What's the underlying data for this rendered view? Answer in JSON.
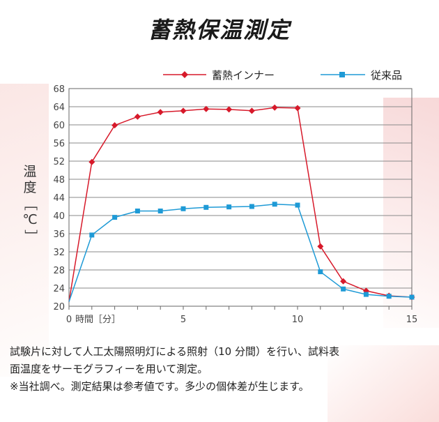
{
  "chart_data": {
    "type": "line",
    "title": "蓄熱保温測定",
    "ylabel": "温度［℃］",
    "xlabel": "時間［分］",
    "xlim": [
      0,
      15
    ],
    "ylim": [
      20,
      68
    ],
    "x_ticks": [
      0,
      5,
      10,
      15
    ],
    "y_ticks": [
      20,
      24,
      28,
      32,
      36,
      40,
      44,
      48,
      52,
      56,
      60,
      64,
      68
    ],
    "grid": true,
    "legend_position": "top",
    "x": [
      0,
      1,
      2,
      3,
      4,
      5,
      6,
      7,
      8,
      9,
      10,
      11,
      12,
      13,
      14,
      15
    ],
    "series": [
      {
        "name": "蓄熱インナー",
        "color": "#d7192a",
        "marker": "diamond",
        "values": [
          21.0,
          51.8,
          59.9,
          61.8,
          62.8,
          63.1,
          63.5,
          63.4,
          63.1,
          63.8,
          63.7,
          33.2,
          25.5,
          23.4,
          22.3,
          22.0
        ]
      },
      {
        "name": "従来品",
        "color": "#1e9ad6",
        "marker": "square",
        "values": [
          21.0,
          35.7,
          39.6,
          41.0,
          41.0,
          41.5,
          41.8,
          41.9,
          42.0,
          42.5,
          42.3,
          27.6,
          23.8,
          22.6,
          22.2,
          22.0
        ]
      }
    ]
  },
  "x_tick_labels": [
    "0",
    "5",
    "10",
    "15"
  ],
  "x_unit_label": "時間［分］",
  "ylabel_chars": [
    "温",
    "度",
    "［",
    "℃",
    "］"
  ],
  "caption": {
    "line1": "試験片に対して人工太陽照明灯による照射（10 分間）を行い、試料表",
    "line2": "面温度をサーモグラフィーを用いて測定。",
    "line3": "※当社調べ。測定結果は参考値です。多少の個体差が生じます。"
  }
}
